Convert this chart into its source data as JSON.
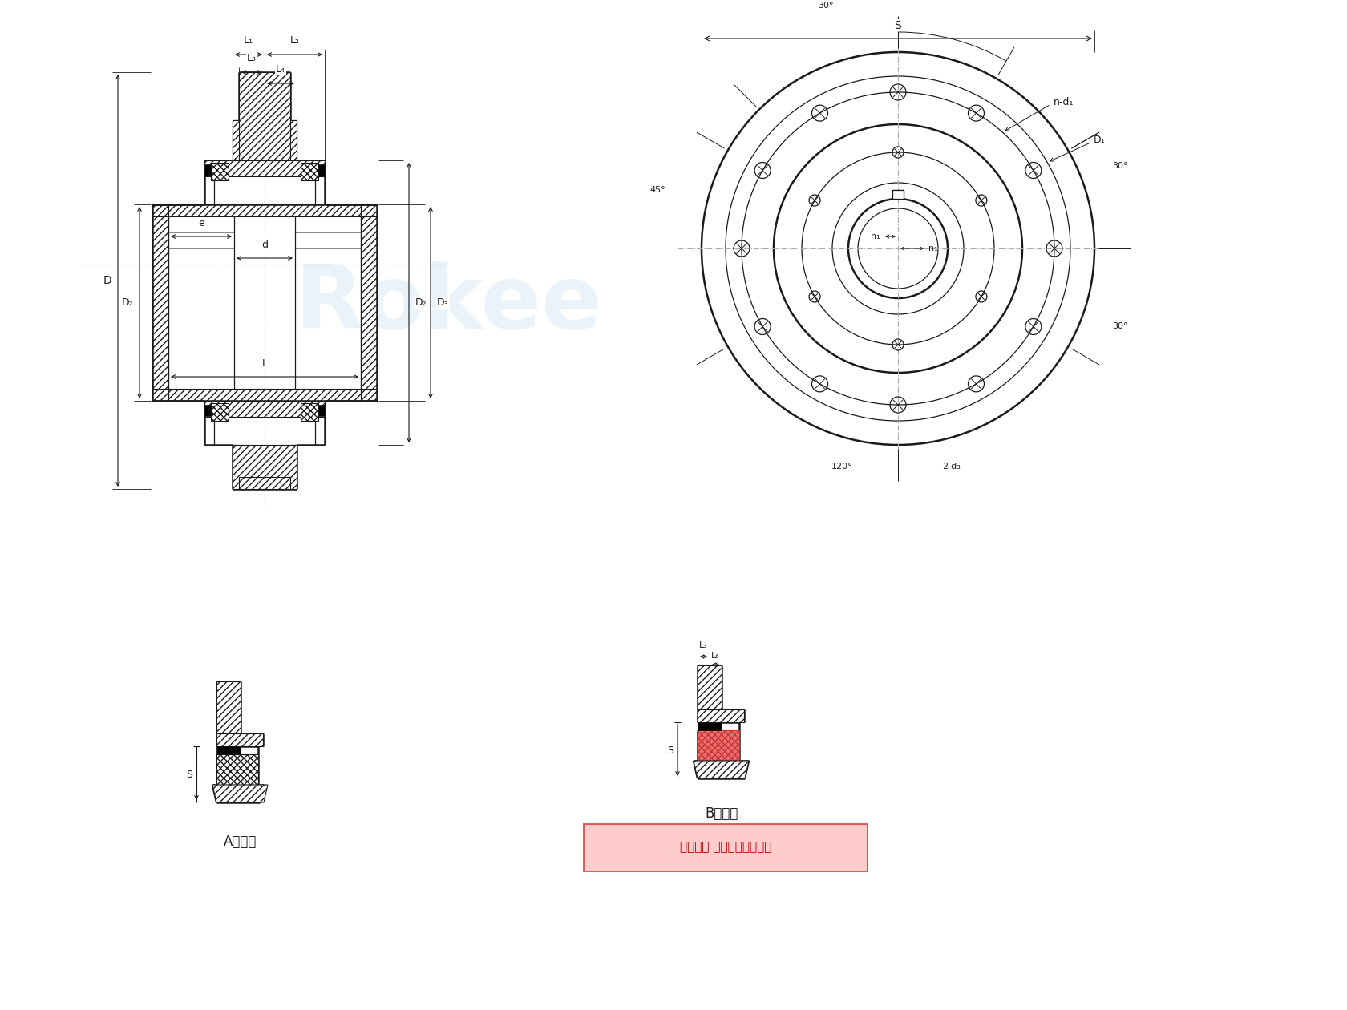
{
  "bg_color": "#ffffff",
  "line_color": "#1a1a1a",
  "dim_color": "#1a1a1a",
  "title_A": "A型结构",
  "title_B": "B型结构",
  "copyright": "版权所有 侵权必被严厉追究",
  "labels": {
    "L1": "L₁",
    "L2": "L₂",
    "L3": "L₃",
    "L4": "L₄",
    "L6": "L₆",
    "D": "D",
    "D2": "D₂",
    "D3": "D₃",
    "D1": "D₁",
    "d": "d",
    "e": "e",
    "L": "L",
    "S": "S",
    "nd1": "n-d₁",
    "n1": "n₁",
    "2d3": "2-d₃",
    "angle30": "30°",
    "angle45": "45°",
    "angle120": "120°"
  }
}
